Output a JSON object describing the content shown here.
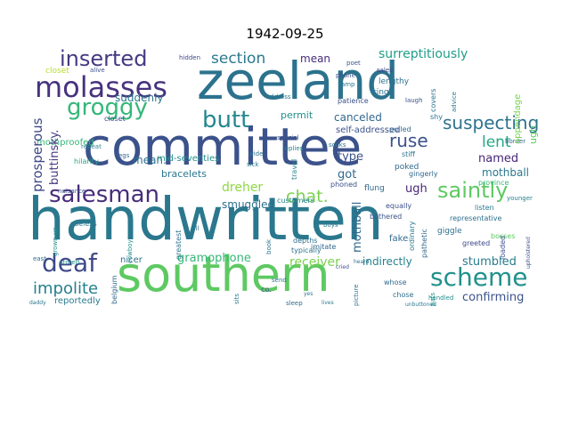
{
  "title": "1942-09-25",
  "words": [
    {
      "text": "handwritten",
      "color": "#2a788e"
    },
    {
      "text": "committee",
      "color": "#3b528b"
    },
    {
      "text": "zeeland",
      "color": "#2c728e"
    },
    {
      "text": "southern",
      "color": "#5ec962"
    },
    {
      "text": "molasses",
      "color": "#46327e"
    },
    {
      "text": "inserted",
      "color": "#443a83"
    },
    {
      "text": "groggy",
      "color": "#35b779"
    },
    {
      "text": "salesman",
      "color": "#472d7b"
    },
    {
      "text": "deaf",
      "color": "#3e4989"
    },
    {
      "text": "butt",
      "color": "#23888e"
    },
    {
      "text": "scheme",
      "color": "#21918c"
    },
    {
      "text": "saintly",
      "color": "#5ec962"
    },
    {
      "text": "suspecting",
      "color": "#2c728e"
    },
    {
      "text": "section",
      "color": "#2a788e"
    },
    {
      "text": "surreptitiously",
      "color": "#1f9e89"
    },
    {
      "text": "ruse",
      "color": "#3b528b"
    },
    {
      "text": "lent",
      "color": "#22a884"
    },
    {
      "text": "chat",
      "color": "#7ad151"
    },
    {
      "text": "dreher",
      "color": "#8fd744"
    },
    {
      "text": "impolite",
      "color": "#277f8e"
    },
    {
      "text": "gramophone",
      "color": "#35b779"
    },
    {
      "text": "receiver",
      "color": "#7ad151"
    },
    {
      "text": "stumbled",
      "color": "#287c8e"
    },
    {
      "text": "confirming",
      "color": "#3b528b"
    },
    {
      "text": "indirectly",
      "color": "#26828e"
    },
    {
      "text": "prosperous",
      "color": "#3e4989"
    },
    {
      "text": "buttinsky",
      "color": "#443a83"
    },
    {
      "text": "smuggled",
      "color": "#2d708e"
    },
    {
      "text": "canceled",
      "color": "#31688e"
    },
    {
      "text": "named",
      "color": "#482677"
    },
    {
      "text": "mothball",
      "color": "#2a788e"
    },
    {
      "text": "suddenly",
      "color": "#31688e"
    },
    {
      "text": "bracelets",
      "color": "#2a788e"
    },
    {
      "text": "creative",
      "color": "#2a788e"
    },
    {
      "text": "mean",
      "color": "#2c728e"
    },
    {
      "text": "permit",
      "color": "#472d7b"
    },
    {
      "text": "reportedly",
      "color": "#21918c"
    },
    {
      "text": "enclosed",
      "color": "#287c8e"
    },
    {
      "text": "got",
      "color": "#31688e"
    },
    {
      "text": "type",
      "color": "#3b528b"
    },
    {
      "text": "ugh",
      "color": "#482677"
    },
    {
      "text": "appendage",
      "color": "#5ec962"
    },
    {
      "text": "mothproofed",
      "color": "#7ad151"
    },
    {
      "text": "mid-seventies",
      "color": "#35b779"
    },
    {
      "text": "self-addressed",
      "color": "#21918c"
    },
    {
      "text": "fake",
      "color": "#31688e"
    },
    {
      "text": "giggle",
      "color": "#3b528b"
    },
    {
      "text": "flung",
      "color": "#2d708e"
    },
    {
      "text": "poked",
      "color": "#31688e"
    },
    {
      "text": "rings",
      "color": "#31688e"
    },
    {
      "text": "nicer",
      "color": "#2c728e"
    },
    {
      "text": "lengthy",
      "color": "#2c728e"
    },
    {
      "text": "envelope",
      "color": "#2d708e"
    },
    {
      "text": "repeat",
      "color": "#26828e"
    },
    {
      "text": "hilarity",
      "color": "#22a884"
    },
    {
      "text": "stored",
      "color": "#21918c"
    },
    {
      "text": "useless",
      "color": "#2a788e"
    },
    {
      "text": "brother",
      "color": "#2c728e"
    },
    {
      "text": "typically",
      "color": "#31688e"
    },
    {
      "text": "imitate",
      "color": "#26828e"
    },
    {
      "text": "customers",
      "color": "#2d708e"
    },
    {
      "text": "depths",
      "color": "#2d708e"
    },
    {
      "text": "chose",
      "color": "#3e4989"
    },
    {
      "text": "phoned",
      "color": "#3b528b"
    },
    {
      "text": "greeted",
      "color": "#31688e"
    },
    {
      "text": "gingerly",
      "color": "#35b779"
    },
    {
      "text": "province",
      "color": "#5ec962"
    },
    {
      "text": "bosses",
      "color": "#2d708e"
    },
    {
      "text": "representative",
      "color": "#2a788e"
    },
    {
      "text": "listen",
      "color": "#b5de2b"
    },
    {
      "text": "closet",
      "color": "#3e4989"
    },
    {
      "text": "address",
      "color": "#2a788e"
    },
    {
      "text": "patience",
      "color": "#3b528b"
    },
    {
      "text": "bothered",
      "color": "#3b528b"
    },
    {
      "text": "equally",
      "color": "#3b528b"
    },
    {
      "text": "whose",
      "color": "#31688e"
    },
    {
      "text": "handled",
      "color": "#21918c"
    },
    {
      "text": "shy",
      "color": "#2c728e"
    },
    {
      "text": "pulled",
      "color": "#31688e"
    },
    {
      "text": "travel",
      "color": "#26828e"
    },
    {
      "text": "stiff",
      "color": "#2a788e"
    },
    {
      "text": "sales",
      "color": "#3e4989"
    },
    {
      "text": "phone",
      "color": "#3b528b"
    },
    {
      "text": "lamp",
      "color": "#2a788e"
    },
    {
      "text": "hidden",
      "color": "#3e4989"
    },
    {
      "text": "alive",
      "color": "#3b528b"
    },
    {
      "text": "belgium",
      "color": "#31688e"
    },
    {
      "text": "sleep",
      "color": "#31688e"
    },
    {
      "text": "send",
      "color": "#2a788e"
    },
    {
      "text": "co.",
      "color": "#3b528b"
    },
    {
      "text": "greatest",
      "color": "#2c728e"
    },
    {
      "text": "border",
      "color": "#31688e"
    },
    {
      "text": "younger",
      "color": "#26828e"
    },
    {
      "text": "covers",
      "color": "#2c728e"
    },
    {
      "text": "loaded",
      "color": "#3b528b"
    },
    {
      "text": "pathetic",
      "color": "#31688e"
    },
    {
      "text": "ordinary",
      "color": "#2a788e"
    },
    {
      "text": "laugh",
      "color": "#3b528b"
    },
    {
      "text": "socks",
      "color": "#2c728e"
    },
    {
      "text": "replies",
      "color": "#26828e"
    },
    {
      "text": "special",
      "color": "#3b528b"
    },
    {
      "text": "sick",
      "color": "#2a788e"
    },
    {
      "text": "legs",
      "color": "#31688e"
    },
    {
      "text": "fill",
      "color": "#2c728e"
    },
    {
      "text": "wide",
      "color": "#2c728e"
    },
    {
      "text": "grown-up",
      "color": "#21918c"
    },
    {
      "text": "nuisance",
      "color": "#3b528b"
    },
    {
      "text": "east",
      "color": "#31688e"
    },
    {
      "text": "daddy",
      "color": "#2a788e"
    },
    {
      "text": "boys",
      "color": "#2a788e"
    },
    {
      "text": "book",
      "color": "#2c728e"
    },
    {
      "text": "sits",
      "color": "#2a788e"
    },
    {
      "text": "pats",
      "color": "#3b528b"
    },
    {
      "text": "poet",
      "color": "#21918c"
    },
    {
      "text": "picture",
      "color": "#2c728e"
    },
    {
      "text": "advice",
      "color": "#2a788e"
    },
    {
      "text": "unbuttoned",
      "color": "#2a788e"
    },
    {
      "text": "cowboy",
      "color": "#21918c"
    },
    {
      "text": "upholstered",
      "color": "#3b528b"
    },
    {
      "text": "yes",
      "color": "#2a788e"
    },
    {
      "text": "heard",
      "color": "#2c728e"
    },
    {
      "text": "cried",
      "color": "#3b528b"
    },
    {
      "text": "lives",
      "color": "#2a788e"
    }
  ]
}
